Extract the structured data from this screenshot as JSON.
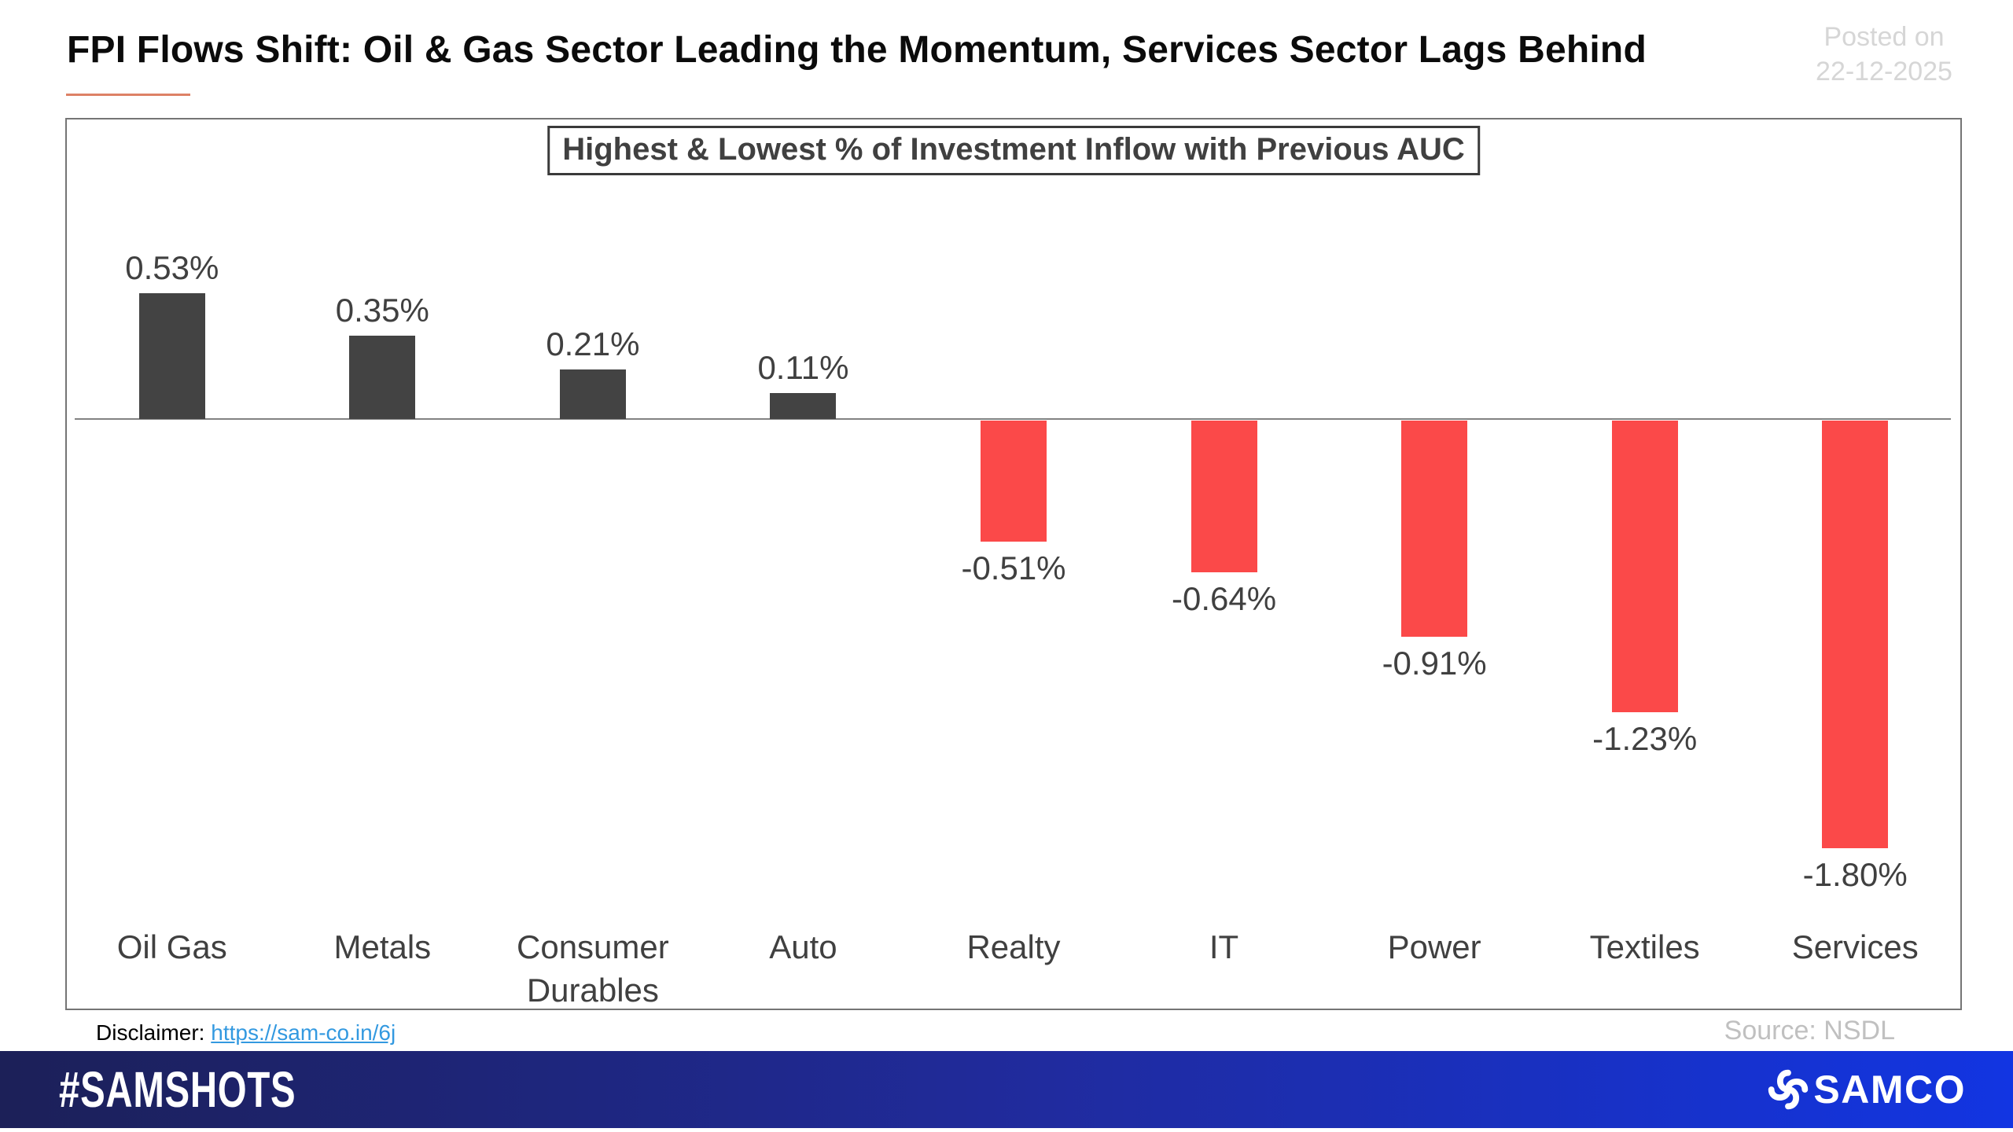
{
  "header": {
    "title": "FPI Flows Shift: Oil & Gas Sector Leading the Momentum, Services Sector Lags Behind",
    "posted_on_line1": "Posted on",
    "posted_on_line2": "22-12-2025"
  },
  "chart_data": {
    "type": "bar",
    "title": "Highest & Lowest % of Investment Inflow with Previous AUC",
    "categories": [
      "Oil Gas",
      "Metals",
      "Consumer Durables",
      "Auto",
      "Realty",
      "IT",
      "Power",
      "Textiles",
      "Services"
    ],
    "values": [
      0.53,
      0.35,
      0.21,
      0.11,
      -0.51,
      -0.64,
      -0.91,
      -1.23,
      -1.8
    ],
    "value_labels": [
      "0.53%",
      "0.35%",
      "0.21%",
      "0.11%",
      "-0.51%",
      "-0.64%",
      "-0.91%",
      "-1.23%",
      "-1.80%"
    ],
    "unit": "%",
    "positive_color": "#434343",
    "negative_color": "#fb4949",
    "axis": {
      "baseline_value": 0,
      "gridlines": false,
      "y_axis_labels_visible": false,
      "value_labels_position": "outside-end"
    },
    "legend": "none"
  },
  "footnotes": {
    "disclaimer_label": "Disclaimer:",
    "disclaimer_link": "https://sam-co.in/6j",
    "source": "Source: NSDL"
  },
  "footer": {
    "hashtag": "#SAMSHOTS",
    "brand": "SAMCO",
    "gradient_left": "#1c2058",
    "gradient_right": "#1235e2"
  }
}
